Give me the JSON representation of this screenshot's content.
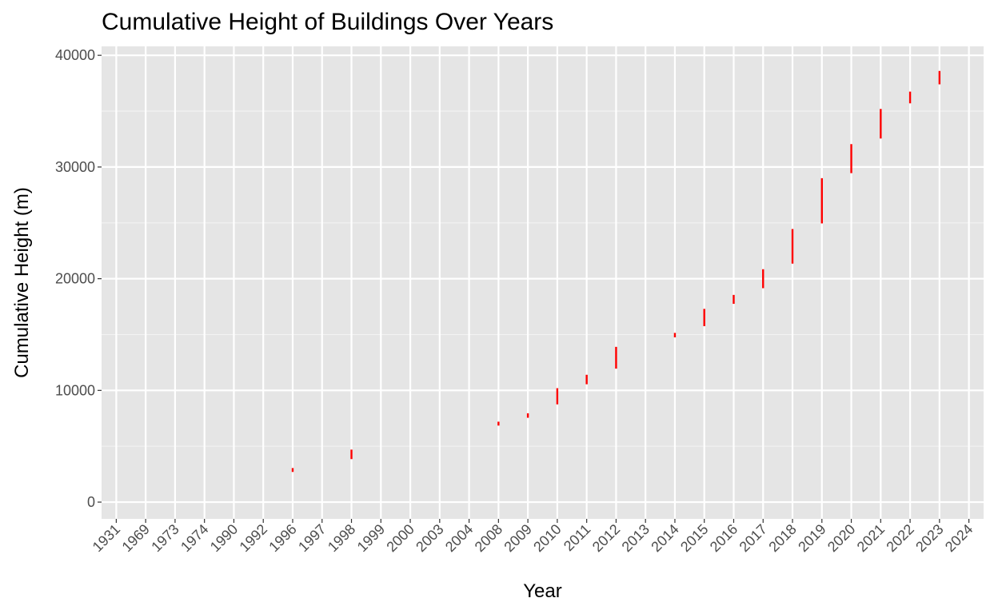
{
  "chart_data": {
    "type": "bar",
    "subtype": "floating-segment",
    "title": "Cumulative Height of Buildings Over Years",
    "xlabel": "Year",
    "ylabel": "Cumulative Height (m)",
    "categories": [
      "1931",
      "1969",
      "1973",
      "1974",
      "1990",
      "1992",
      "1996",
      "1997",
      "1998",
      "1999",
      "2000",
      "2003",
      "2004",
      "2008",
      "2009",
      "2010",
      "2011",
      "2012",
      "2013",
      "2014",
      "2015",
      "2016",
      "2017",
      "2018",
      "2019",
      "2020",
      "2021",
      "2022",
      "2023",
      "2024"
    ],
    "ylim": [
      -1500,
      40800
    ],
    "yticks": [
      0,
      10000,
      20000,
      30000,
      40000
    ],
    "grid": true,
    "segment_color": "#ff0000",
    "series": [
      {
        "segments": [
          {
            "x": "1996",
            "y_start": 2700,
            "y_end": 3050
          },
          {
            "x": "1998",
            "y_start": 3850,
            "y_end": 4700
          },
          {
            "x": "2008",
            "y_start": 6850,
            "y_end": 7200
          },
          {
            "x": "2009",
            "y_start": 7550,
            "y_end": 7950
          },
          {
            "x": "2010",
            "y_start": 8750,
            "y_end": 10200
          },
          {
            "x": "2011",
            "y_start": 10550,
            "y_end": 11400
          },
          {
            "x": "2012",
            "y_start": 11950,
            "y_end": 13900
          },
          {
            "x": "2014",
            "y_start": 14750,
            "y_end": 15150
          },
          {
            "x": "2015",
            "y_start": 15750,
            "y_end": 17300
          },
          {
            "x": "2016",
            "y_start": 17750,
            "y_end": 18550
          },
          {
            "x": "2017",
            "y_start": 19150,
            "y_end": 20850
          },
          {
            "x": "2018",
            "y_start": 21350,
            "y_end": 24450
          },
          {
            "x": "2019",
            "y_start": 24950,
            "y_end": 29000
          },
          {
            "x": "2020",
            "y_start": 29450,
            "y_end": 32050
          },
          {
            "x": "2021",
            "y_start": 32550,
            "y_end": 35200
          },
          {
            "x": "2022",
            "y_start": 35700,
            "y_end": 36750
          },
          {
            "x": "2023",
            "y_start": 37400,
            "y_end": 38600
          }
        ]
      }
    ]
  }
}
